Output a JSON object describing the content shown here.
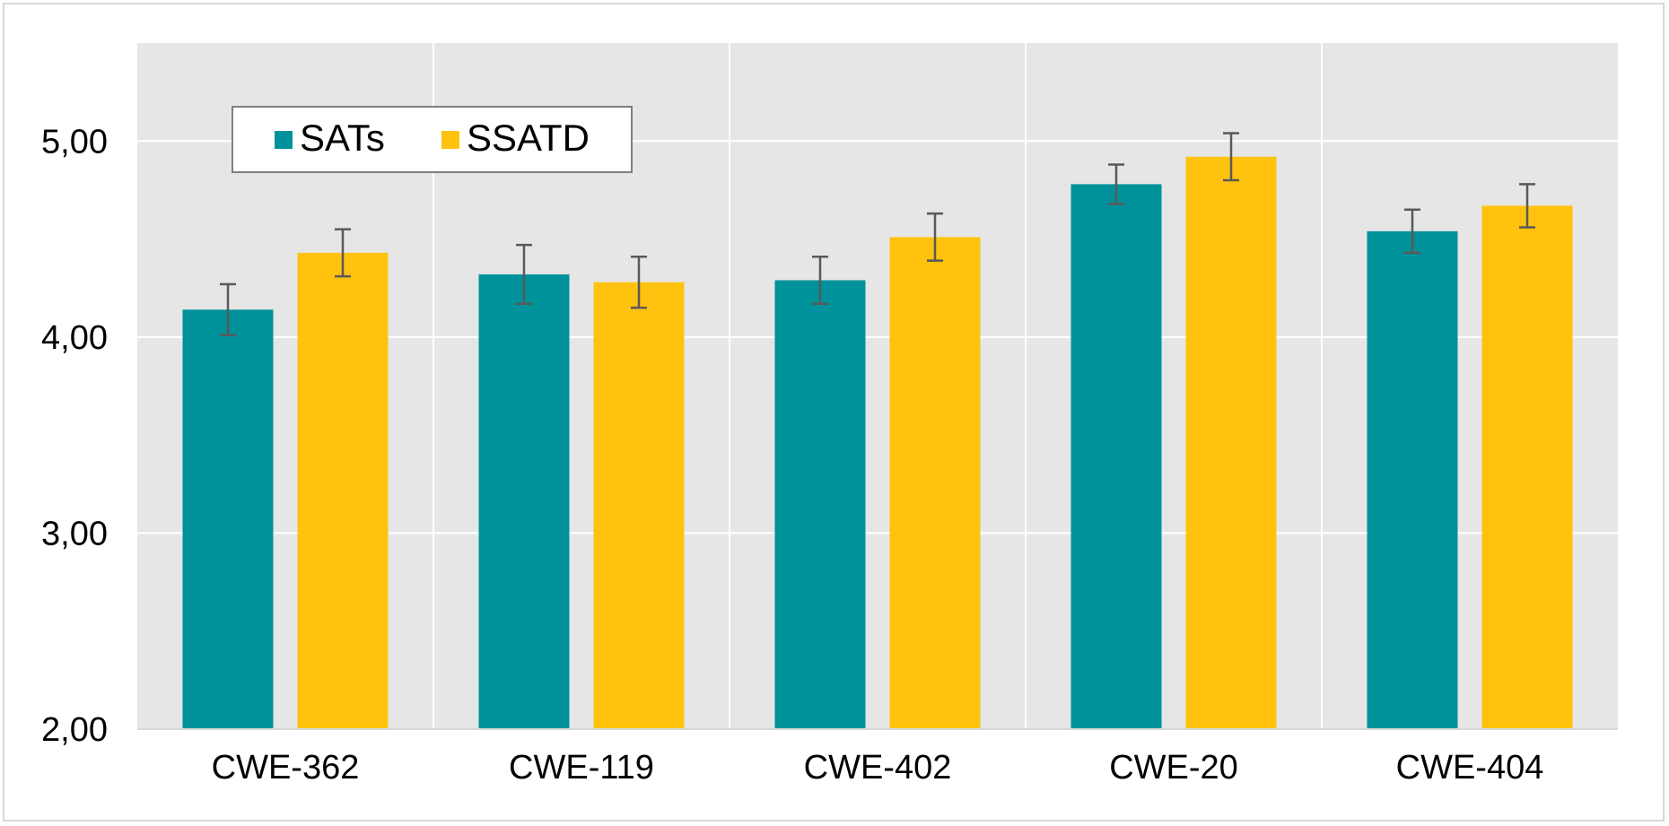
{
  "chart_data": {
    "type": "bar",
    "title": "",
    "xlabel": "",
    "ylabel": "",
    "categories": [
      "CWE-362",
      "CWE-119",
      "CWE-402",
      "CWE-20",
      "CWE-404"
    ],
    "series": [
      {
        "name": "SATs",
        "color": "#00929A",
        "values": [
          4.14,
          4.32,
          4.29,
          4.78,
          4.54
        ],
        "errors": [
          0.13,
          0.15,
          0.12,
          0.1,
          0.11
        ]
      },
      {
        "name": "SSATD",
        "color": "#FFC20E",
        "values": [
          4.43,
          4.28,
          4.51,
          4.92,
          4.67
        ],
        "errors": [
          0.12,
          0.13,
          0.12,
          0.12,
          0.11
        ]
      }
    ],
    "ylim": [
      2.0,
      5.5
    ],
    "yticks": [
      2.0,
      3.0,
      4.0,
      5.0
    ],
    "ytick_labels": [
      "2,00",
      "3,00",
      "4,00",
      "5,00"
    ],
    "grid": true,
    "legend_position": "top-left",
    "plot_background": "#E6E6E6",
    "gridline_color": "#FFFFFF",
    "errorbar_color": "#595959"
  }
}
